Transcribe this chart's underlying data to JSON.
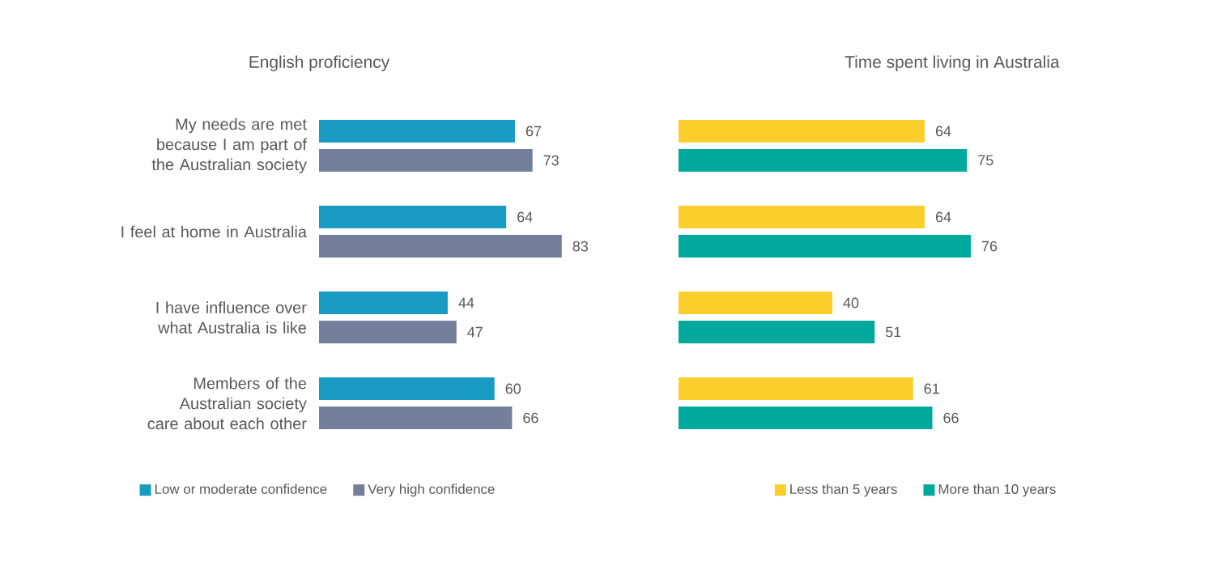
{
  "chart_data": [
    {
      "type": "bar",
      "orientation": "horizontal",
      "title": "English proficiency",
      "categories": [
        "My needs are met because I am part of the Australian society",
        "I feel at home in Australia",
        "I have influence over what Australia is like",
        "Members of the Australian society care about each other"
      ],
      "series": [
        {
          "name": "Low or moderate confidence",
          "color": "#1a9bc4",
          "values": [
            67,
            64,
            44,
            60
          ]
        },
        {
          "name": "Very high confidence",
          "color": "#737f9b",
          "values": [
            73,
            83,
            47,
            66
          ]
        }
      ],
      "data_labels": true,
      "legend": "bottom",
      "tick_labels": "y"
    },
    {
      "type": "bar",
      "orientation": "horizontal",
      "title": "Time spent living in Australia",
      "categories": [
        null,
        null,
        null,
        null
      ],
      "series": [
        {
          "name": "Less than 5 years",
          "color": "#fccf2c",
          "values": [
            64,
            64,
            40,
            61
          ]
        },
        {
          "name": "More than 10 years",
          "color": "#00a99b",
          "values": [
            75,
            76,
            51,
            66
          ]
        }
      ],
      "data_labels": true,
      "legend": "bottom",
      "tick_labels": false
    }
  ]
}
